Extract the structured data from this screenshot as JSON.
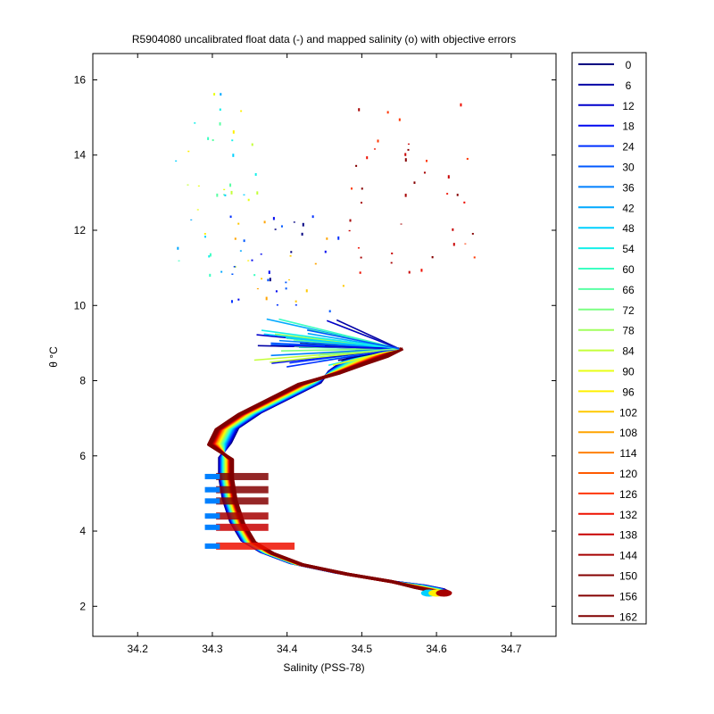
{
  "chart_data": {
    "type": "line",
    "title": "R5904080 uncalibrated float data (-) and mapped salinity (o) with objective errors",
    "xlabel": "Salinity (PSS-78)",
    "ylabel": "θ °C",
    "xlim": [
      34.14,
      34.76
    ],
    "ylim": [
      1.2,
      16.7
    ],
    "xticks": [
      "34.2",
      "34.3",
      "34.4",
      "34.5",
      "34.6",
      "34.7"
    ],
    "yticks": [
      "2",
      "4",
      "6",
      "8",
      "10",
      "12",
      "14",
      "16"
    ],
    "grid": false,
    "legend_position": "outside-right",
    "profile_shape": {
      "salinity": [
        34.61,
        34.6,
        34.575,
        34.53,
        34.47,
        34.41,
        34.37,
        34.345,
        34.33,
        34.32,
        34.315,
        34.315,
        34.32,
        34.33,
        34.36,
        34.4,
        34.44,
        34.475,
        34.51,
        34.54,
        34.56
      ],
      "theta": [
        2.3,
        2.4,
        2.5,
        2.65,
        2.85,
        3.1,
        3.4,
        3.7,
        4.2,
        4.8,
        5.4,
        5.9,
        6.3,
        6.7,
        7.1,
        7.5,
        7.9,
        8.2,
        8.45,
        8.65,
        8.85
      ]
    },
    "series": [
      {
        "name": "0",
        "color": "#000080"
      },
      {
        "name": "6",
        "color": "#0000a6"
      },
      {
        "name": "12",
        "color": "#0000cc"
      },
      {
        "name": "18",
        "color": "#0008f0"
      },
      {
        "name": "24",
        "color": "#0030ff"
      },
      {
        "name": "30",
        "color": "#0058ff"
      },
      {
        "name": "36",
        "color": "#0080ff"
      },
      {
        "name": "42",
        "color": "#00a8ff"
      },
      {
        "name": "48",
        "color": "#00d0ff"
      },
      {
        "name": "54",
        "color": "#14f0ea"
      },
      {
        "name": "60",
        "color": "#3cffc2"
      },
      {
        "name": "66",
        "color": "#5affa4"
      },
      {
        "name": "72",
        "color": "#7cff82"
      },
      {
        "name": "78",
        "color": "#a0ff5e"
      },
      {
        "name": "84",
        "color": "#c4ff3a"
      },
      {
        "name": "90",
        "color": "#e8ff16"
      },
      {
        "name": "96",
        "color": "#fff000"
      },
      {
        "name": "102",
        "color": "#ffc800"
      },
      {
        "name": "108",
        "color": "#ffa400"
      },
      {
        "name": "114",
        "color": "#ff8000"
      },
      {
        "name": "120",
        "color": "#ff5a00"
      },
      {
        "name": "126",
        "color": "#ff3600"
      },
      {
        "name": "132",
        "color": "#ee1000"
      },
      {
        "name": "138",
        "color": "#c80000"
      },
      {
        "name": "144",
        "color": "#a60000"
      },
      {
        "name": "150",
        "color": "#840000"
      },
      {
        "name": "156",
        "color": "#840000"
      },
      {
        "name": "162",
        "color": "#800000"
      }
    ]
  }
}
